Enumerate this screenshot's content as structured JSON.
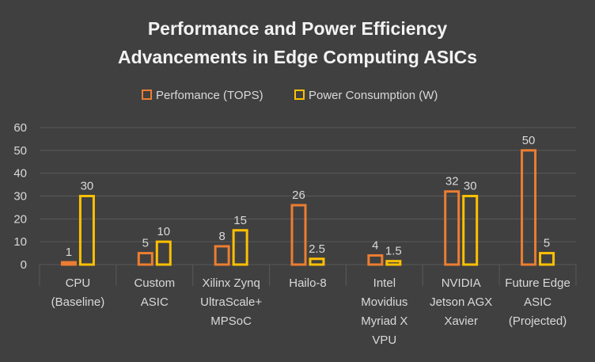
{
  "chart_data": {
    "type": "bar",
    "title_lines": [
      "Performance and Power Efficiency",
      "Advancements in Edge Computing ASICs"
    ],
    "categories": [
      [
        "CPU",
        "(Baseline)"
      ],
      [
        "Custom",
        "ASIC"
      ],
      [
        "Xilinx Zynq",
        "UltraScale+",
        "MPSoC"
      ],
      [
        "Hailo-8"
      ],
      [
        "Intel",
        "Movidius",
        "Myriad X",
        "VPU"
      ],
      [
        "NVIDIA",
        "Jetson AGX",
        "Xavier"
      ],
      [
        "Future Edge",
        "ASIC",
        "(Projected)"
      ]
    ],
    "series": [
      {
        "name": "Perfomance (TOPS)",
        "values": [
          1,
          5,
          8,
          26,
          4,
          32,
          50
        ],
        "labels": [
          "1",
          "5",
          "8",
          "26",
          "4",
          "32",
          "50"
        ],
        "color": "#ED7D31"
      },
      {
        "name": "Power Consumption (W)",
        "values": [
          30,
          10,
          15,
          2.5,
          1.5,
          30,
          5
        ],
        "labels": [
          "30",
          "10",
          "15",
          "2.5",
          "1.5",
          "30",
          "5"
        ],
        "color": "#FFC000"
      }
    ],
    "ylim": [
      0,
      60
    ],
    "yticks": [
      "0",
      "10",
      "20",
      "30",
      "40",
      "50",
      "60"
    ],
    "grid": true,
    "legend": "top",
    "colors": {
      "background": "#404040",
      "gridline": "#595959",
      "text": "#D9D9D9",
      "title": "#F2F2F2"
    }
  }
}
